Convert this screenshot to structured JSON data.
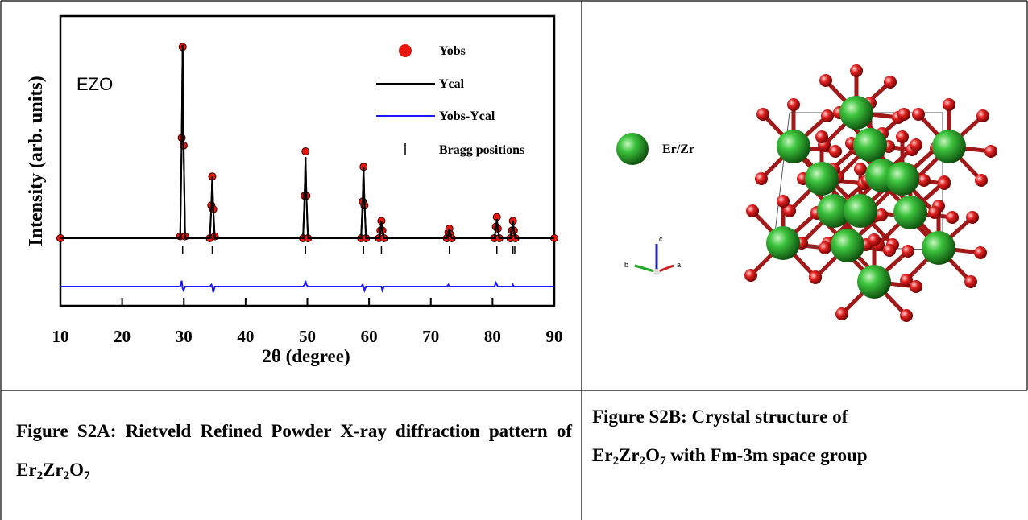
{
  "chart_data": {
    "type": "line",
    "annotation": "EZO",
    "x_label": "2θ (degree)",
    "y_label": "Intensity (arb. units)",
    "xlim": [
      10,
      90
    ],
    "xticks": [
      10,
      20,
      30,
      40,
      50,
      60,
      70,
      80,
      90
    ],
    "ylim": [
      -35,
      115
    ],
    "series": [
      {
        "name": "Yobs",
        "color": "#e8160c",
        "marker": "dot",
        "x": [
          10,
          29.4,
          29.65,
          29.8,
          29.95,
          30.2,
          34.2,
          34.45,
          34.6,
          34.75,
          35.0,
          49.3,
          49.55,
          49.7,
          49.85,
          50.1,
          58.7,
          58.95,
          59.1,
          59.25,
          59.5,
          61.6,
          61.85,
          62.0,
          62.15,
          62.4,
          72.6,
          72.85,
          73.0,
          73.15,
          73.4,
          80.3,
          80.55,
          80.7,
          80.85,
          81.1,
          82.9,
          83.15,
          83.3,
          83.45,
          83.7,
          90
        ],
        "values": [
          0,
          1,
          52,
          99,
          48,
          1,
          0,
          17,
          32,
          15,
          1,
          0,
          22,
          45,
          22,
          0,
          0,
          19,
          37,
          17,
          0,
          0,
          4,
          9,
          4,
          0,
          0,
          3,
          5,
          2,
          0,
          0,
          6,
          11,
          5,
          0,
          0,
          4,
          9,
          4,
          0,
          0
        ]
      },
      {
        "name": "Ycal",
        "color": "#000000",
        "marker": "line",
        "x": [
          10,
          29.4,
          29.65,
          29.8,
          29.95,
          30.2,
          34.2,
          34.45,
          34.6,
          34.75,
          35.0,
          49.3,
          49.55,
          49.7,
          49.85,
          50.1,
          58.7,
          58.95,
          59.1,
          59.25,
          59.5,
          61.6,
          61.85,
          62.0,
          62.15,
          62.4,
          72.6,
          72.85,
          73.0,
          73.15,
          73.4,
          80.3,
          80.55,
          80.7,
          80.85,
          81.1,
          82.9,
          83.15,
          83.3,
          83.45,
          83.7,
          90
        ],
        "values": [
          0,
          0,
          50,
          100,
          50,
          0,
          0,
          16,
          32,
          16,
          0,
          0,
          21,
          42,
          21,
          0,
          0,
          18,
          37,
          18,
          0,
          0,
          4,
          9,
          4,
          0,
          0,
          2,
          5,
          2,
          0,
          0,
          5,
          10,
          5,
          0,
          0,
          4,
          9,
          4,
          0,
          0
        ]
      },
      {
        "name": "Yobs-Ycal",
        "color": "#1a1aff",
        "marker": "line",
        "x": [
          10,
          29.4,
          29.65,
          29.8,
          29.95,
          30.2,
          34.2,
          34.45,
          34.6,
          34.75,
          35.0,
          49.3,
          49.55,
          49.7,
          49.85,
          50.1,
          58.7,
          58.95,
          59.1,
          59.25,
          59.5,
          61.6,
          61.85,
          62.0,
          62.15,
          62.4,
          72.6,
          72.85,
          73.0,
          73.15,
          73.4,
          80.3,
          80.55,
          80.7,
          80.85,
          81.1,
          82.9,
          83.15,
          83.3,
          83.45,
          83.7,
          90
        ],
        "values": [
          -25,
          -25,
          -22,
          -26,
          -27,
          -25,
          -25,
          -24,
          -25,
          -28,
          -25,
          -25,
          -24,
          -22,
          -24,
          -25,
          -25,
          -24,
          -25,
          -27,
          -25,
          -25,
          -25,
          -25,
          -27,
          -25,
          -25,
          -24,
          -25,
          -25,
          -25,
          -25,
          -23,
          -24,
          -25,
          -25,
          -25,
          -25,
          -24,
          -25,
          -25,
          -25
        ]
      },
      {
        "name": "Bragg positions",
        "color": "#000000",
        "marker": "tick",
        "x": [
          29.8,
          34.6,
          49.7,
          59.1,
          62.0,
          73.0,
          80.7,
          83.3,
          83.6
        ],
        "values": [
          -6,
          -6,
          -6,
          -6,
          -6,
          -6,
          -6,
          -6,
          -6
        ]
      }
    ]
  },
  "structure": {
    "legend_label": "Er/Zr",
    "axes": {
      "a": "a",
      "b": "b",
      "c": "c"
    }
  },
  "captions": [
    {
      "title": "Figure S2A:",
      "text": "Rietveld Refined Powder X-ray diffraction pattern of",
      "formula": [
        {
          "text": "Er",
          "sub": "2"
        },
        {
          "text": "Zr",
          "sub": "2"
        },
        {
          "text": "O",
          "sub": "7"
        }
      ]
    },
    {
      "title": "Figure S2B:",
      "text": "Crystal structure of",
      "formula": [
        {
          "text": "Er",
          "sub": "2"
        },
        {
          "text": "Zr",
          "sub": "2"
        },
        {
          "text": "O",
          "sub": "7"
        }
      ],
      "text2": "with Fm-3m space group"
    }
  ]
}
